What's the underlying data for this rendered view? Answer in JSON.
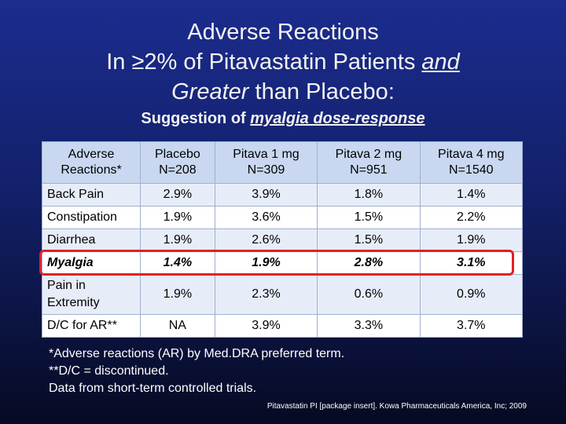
{
  "title": {
    "line1": "Adverse Reactions",
    "line2_lead": "In ≥2% of Pitavastatin Patients",
    "line2_em": "and",
    "line3_em": "Greater",
    "line3_rest": "than Placebo:"
  },
  "subtitle": {
    "lead": "Suggestion of",
    "em": "myalgia dose-response"
  },
  "table": {
    "header": [
      {
        "label": "Adverse Reactions*"
      },
      {
        "label": "Placebo",
        "n": "N=208"
      },
      {
        "label": "Pitava 1 mg",
        "n": "N=309"
      },
      {
        "label": "Pitava 2 mg",
        "n": "N=951"
      },
      {
        "label": "Pitava 4 mg",
        "n": "N=1540"
      }
    ],
    "rows": [
      [
        "Back Pain",
        "2.9%",
        "3.9%",
        "1.8%",
        "1.4%"
      ],
      [
        "Constipation",
        "1.9%",
        "3.6%",
        "1.5%",
        "2.2%"
      ],
      [
        "Diarrhea",
        "1.9%",
        "2.6%",
        "1.5%",
        "1.9%"
      ],
      [
        "Myalgia",
        "1.4%",
        "1.9%",
        "2.8%",
        "3.1%"
      ],
      [
        "Pain in Extremity",
        "1.9%",
        "2.3%",
        "0.6%",
        "0.9%"
      ],
      [
        "D/C for AR**",
        "NA",
        "3.9%",
        "3.3%",
        "3.7%"
      ]
    ],
    "highlighted_row": 3
  },
  "footnotes": [
    "*Adverse reactions (AR) by Med.DRA preferred term.",
    "**D/C = discontinued.",
    "Data from short-term controlled trials."
  ],
  "citation": "Pitavastatin PI [package insert]. Kowa Pharmaceuticals America, Inc; 2009"
}
